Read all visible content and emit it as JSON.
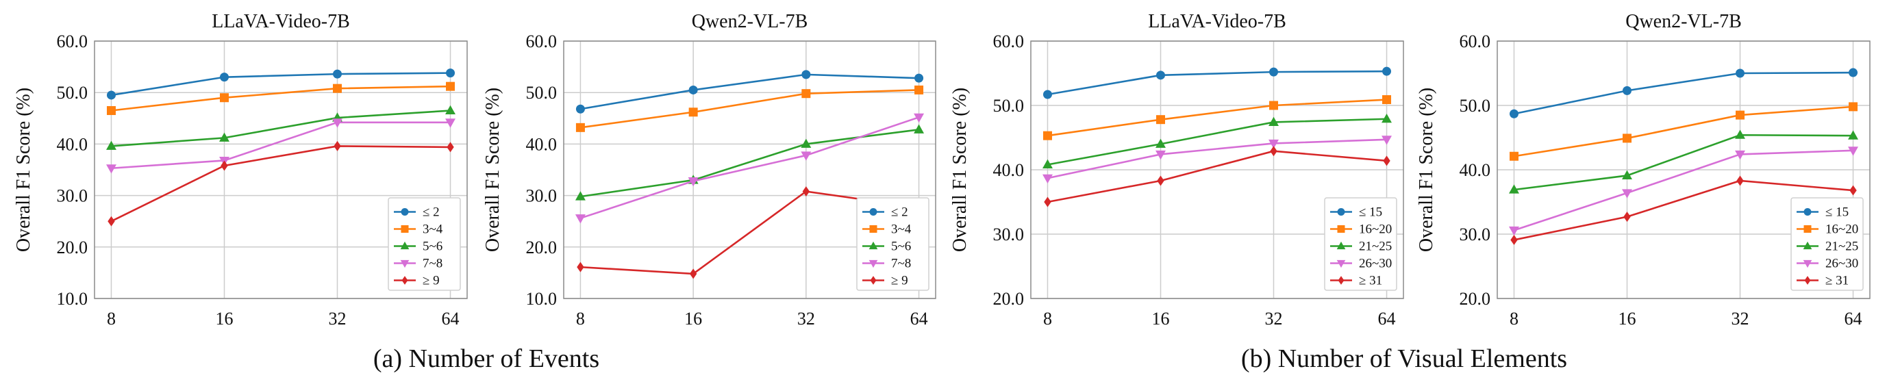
{
  "captions": [
    "(a) Number of Events",
    "(b) Number of Visual Elements"
  ],
  "colors": {
    "blue": "#1f77b4",
    "orange": "#ff7f0e",
    "green": "#2ca02c",
    "purple": "#d66fd6",
    "red": "#d62728",
    "grid": "#cccccc",
    "frame": "#8a8a8a"
  },
  "chart_data": [
    {
      "type": "line",
      "title": "LLaVA-Video-7B",
      "group": "(a) Number of Events",
      "xlabel": "",
      "ylabel": "Overall F1 Score (%)",
      "categories": [
        "8",
        "16",
        "32",
        "64"
      ],
      "ylim": [
        10,
        60
      ],
      "yticks": [
        "10.0",
        "20.0",
        "30.0",
        "40.0",
        "50.0",
        "60.0"
      ],
      "grid": true,
      "legend_position": "bottom-right",
      "series": [
        {
          "name": "≤ 2",
          "color": "#1f77b4",
          "marker": "circle",
          "values": [
            49.5,
            53.0,
            53.6,
            53.8
          ]
        },
        {
          "name": "3~4",
          "color": "#ff7f0e",
          "marker": "square",
          "values": [
            46.5,
            49.0,
            50.8,
            51.2
          ]
        },
        {
          "name": "5~6",
          "color": "#2ca02c",
          "marker": "triangle-up",
          "values": [
            39.6,
            41.2,
            45.1,
            46.5
          ]
        },
        {
          "name": "7~8",
          "color": "#d66fd6",
          "marker": "triangle-down",
          "values": [
            35.3,
            36.8,
            44.2,
            44.2
          ]
        },
        {
          "name": "≥ 9",
          "color": "#d62728",
          "marker": "diamond",
          "values": [
            25.0,
            35.8,
            39.6,
            39.4
          ]
        }
      ]
    },
    {
      "type": "line",
      "title": "Qwen2-VL-7B",
      "group": "(a) Number of Events",
      "xlabel": "",
      "ylabel": "Overall F1 Score (%)",
      "categories": [
        "8",
        "16",
        "32",
        "64"
      ],
      "ylim": [
        10,
        60
      ],
      "yticks": [
        "10.0",
        "20.0",
        "30.0",
        "40.0",
        "50.0",
        "60.0"
      ],
      "grid": true,
      "legend_position": "bottom-right",
      "series": [
        {
          "name": "≤ 2",
          "color": "#1f77b4",
          "marker": "circle",
          "values": [
            46.8,
            50.5,
            53.5,
            52.8
          ]
        },
        {
          "name": "3~4",
          "color": "#ff7f0e",
          "marker": "square",
          "values": [
            43.2,
            46.2,
            49.8,
            50.5
          ]
        },
        {
          "name": "5~6",
          "color": "#2ca02c",
          "marker": "triangle-up",
          "values": [
            29.8,
            33.0,
            40.0,
            42.8
          ]
        },
        {
          "name": "7~8",
          "color": "#d66fd6",
          "marker": "triangle-down",
          "values": [
            25.6,
            32.8,
            37.8,
            45.2
          ]
        },
        {
          "name": "≥ 9",
          "color": "#d62728",
          "marker": "diamond",
          "values": [
            16.1,
            14.8,
            30.8,
            27.7
          ]
        }
      ]
    },
    {
      "type": "line",
      "title": "LLaVA-Video-7B",
      "group": "(b) Number of Visual Elements",
      "xlabel": "",
      "ylabel": "Overall F1 Score (%)",
      "categories": [
        "8",
        "16",
        "32",
        "64"
      ],
      "ylim": [
        20,
        60
      ],
      "yticks": [
        "20.0",
        "30.0",
        "40.0",
        "50.0",
        "60.0"
      ],
      "grid": true,
      "legend_position": "bottom-right",
      "series": [
        {
          "name": "≤ 15",
          "color": "#1f77b4",
          "marker": "circle",
          "values": [
            51.7,
            54.7,
            55.2,
            55.3
          ]
        },
        {
          "name": "16~20",
          "color": "#ff7f0e",
          "marker": "square",
          "values": [
            45.3,
            47.8,
            50.0,
            50.9
          ]
        },
        {
          "name": "21~25",
          "color": "#2ca02c",
          "marker": "triangle-up",
          "values": [
            40.8,
            44.0,
            47.4,
            47.9
          ]
        },
        {
          "name": "26~30",
          "color": "#d66fd6",
          "marker": "triangle-down",
          "values": [
            38.7,
            42.4,
            44.1,
            44.7
          ]
        },
        {
          "name": "≥ 31",
          "color": "#d62728",
          "marker": "diamond",
          "values": [
            35.0,
            38.3,
            42.9,
            41.4
          ]
        }
      ]
    },
    {
      "type": "line",
      "title": "Qwen2-VL-7B",
      "group": "(b) Number of Visual Elements",
      "xlabel": "",
      "ylabel": "Overall F1 Score (%)",
      "categories": [
        "8",
        "16",
        "32",
        "64"
      ],
      "ylim": [
        20,
        60
      ],
      "yticks": [
        "20.0",
        "30.0",
        "40.0",
        "50.0",
        "60.0"
      ],
      "grid": true,
      "legend_position": "bottom-right",
      "series": [
        {
          "name": "≤ 15",
          "color": "#1f77b4",
          "marker": "circle",
          "values": [
            48.7,
            52.3,
            55.0,
            55.1
          ]
        },
        {
          "name": "16~20",
          "color": "#ff7f0e",
          "marker": "square",
          "values": [
            42.1,
            44.9,
            48.5,
            49.8
          ]
        },
        {
          "name": "21~25",
          "color": "#2ca02c",
          "marker": "triangle-up",
          "values": [
            36.9,
            39.1,
            45.4,
            45.3
          ]
        },
        {
          "name": "26~30",
          "color": "#d66fd6",
          "marker": "triangle-down",
          "values": [
            30.6,
            36.4,
            42.4,
            43.0
          ]
        },
        {
          "name": "≥ 31",
          "color": "#d62728",
          "marker": "diamond",
          "values": [
            29.1,
            32.7,
            38.3,
            36.8
          ]
        }
      ]
    }
  ]
}
